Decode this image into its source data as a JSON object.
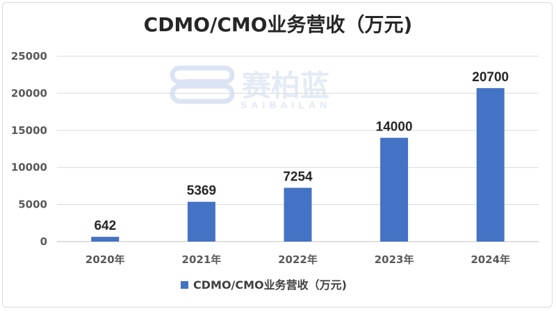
{
  "chart_data": {
    "type": "bar",
    "title": "CDMO/CMO业务营收（万元)",
    "categories": [
      "2020年",
      "2021年",
      "2022年",
      "2023年",
      "2024年"
    ],
    "series": [
      {
        "name": "CDMO/CMO业务营收（万元)",
        "values": [
          642,
          5369,
          7254,
          14000,
          20700
        ],
        "color": "#4472c4"
      }
    ],
    "ylim": [
      0,
      25000
    ],
    "yticks": [
      0,
      5000,
      10000,
      15000,
      20000,
      25000
    ],
    "grid": true,
    "legend_position": "bottom"
  },
  "watermark": {
    "brand_cn": "赛柏蓝",
    "brand_en": "SAIBAILAN",
    "color": "#c9d8ec"
  }
}
